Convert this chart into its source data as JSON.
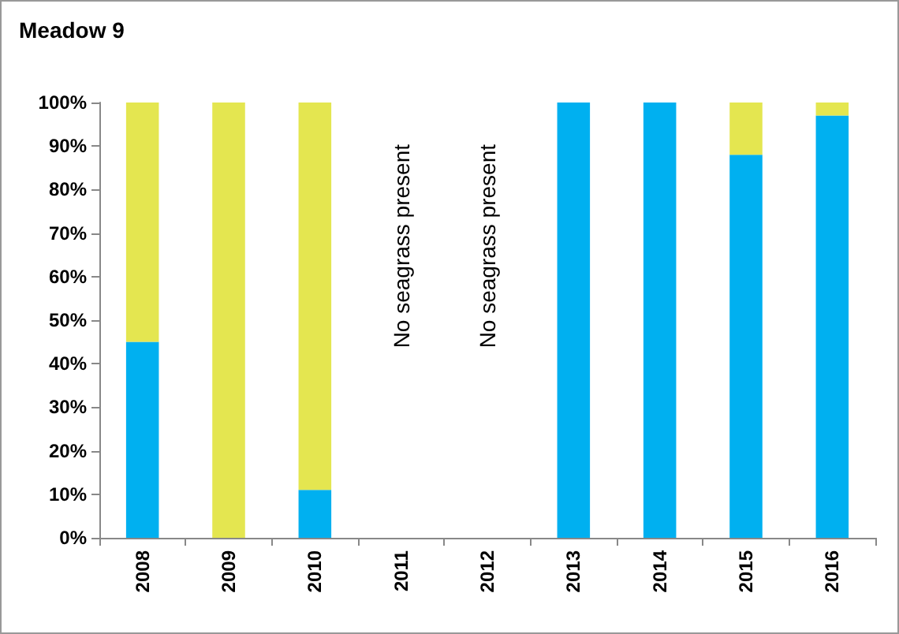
{
  "chart_data": {
    "type": "bar",
    "title": "Meadow 9",
    "stacked": true,
    "grid": false,
    "categories": [
      "2008",
      "2009",
      "2010",
      "2011",
      "2012",
      "2013",
      "2014",
      "2015",
      "2016"
    ],
    "series": [
      {
        "color": "#00b0f0",
        "values": [
          45,
          0,
          11,
          null,
          null,
          100,
          100,
          88,
          97
        ]
      },
      {
        "color": "#e4e650",
        "values": [
          55,
          100,
          89,
          null,
          null,
          0,
          0,
          12,
          3
        ]
      }
    ],
    "ylim": [
      0,
      100
    ],
    "yticks": [
      {
        "value": 0,
        "label": "0%"
      },
      {
        "value": 10,
        "label": "10%"
      },
      {
        "value": 20,
        "label": "20%"
      },
      {
        "value": 30,
        "label": "30%"
      },
      {
        "value": 40,
        "label": "40%"
      },
      {
        "value": 50,
        "label": "50%"
      },
      {
        "value": 60,
        "label": "60%"
      },
      {
        "value": 70,
        "label": "70%"
      },
      {
        "value": 80,
        "label": "80%"
      },
      {
        "value": 90,
        "label": "90%"
      },
      {
        "value": 100,
        "label": "100%"
      }
    ],
    "annotations": [
      "No seagrass present",
      "No seagrass present"
    ]
  }
}
